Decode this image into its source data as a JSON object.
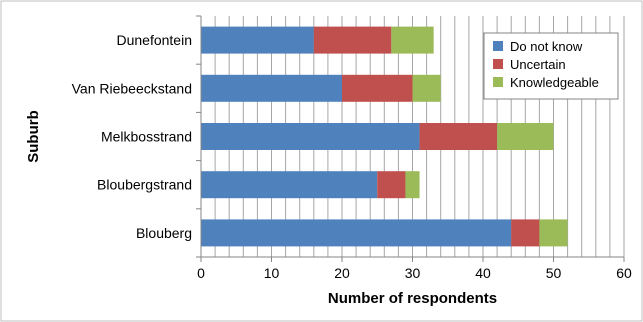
{
  "chart_data": {
    "type": "bar",
    "orientation": "horizontal",
    "stacked": true,
    "categories": [
      "Dunefontein",
      "Van Riebeeckstand",
      "Melkbosstrand",
      "Bloubergstrand",
      "Blouberg"
    ],
    "series": [
      {
        "name": "Do not know",
        "color": "#4f81bd",
        "values": [
          16,
          20,
          31,
          25,
          44
        ]
      },
      {
        "name": "Uncertain",
        "color": "#c0504d",
        "values": [
          11,
          10,
          11,
          4,
          4
        ]
      },
      {
        "name": "Knowledgeable",
        "color": "#9bbb59",
        "values": [
          6,
          4,
          8,
          2,
          4
        ]
      }
    ],
    "xlabel": "Number of respondents",
    "ylabel": "Suburb",
    "xlim": [
      0,
      60
    ],
    "xticks": [
      "0",
      "10",
      "20",
      "30",
      "40",
      "50",
      "60"
    ],
    "minor_grid_step": 2,
    "grid": true,
    "legend_position": "top-right"
  }
}
